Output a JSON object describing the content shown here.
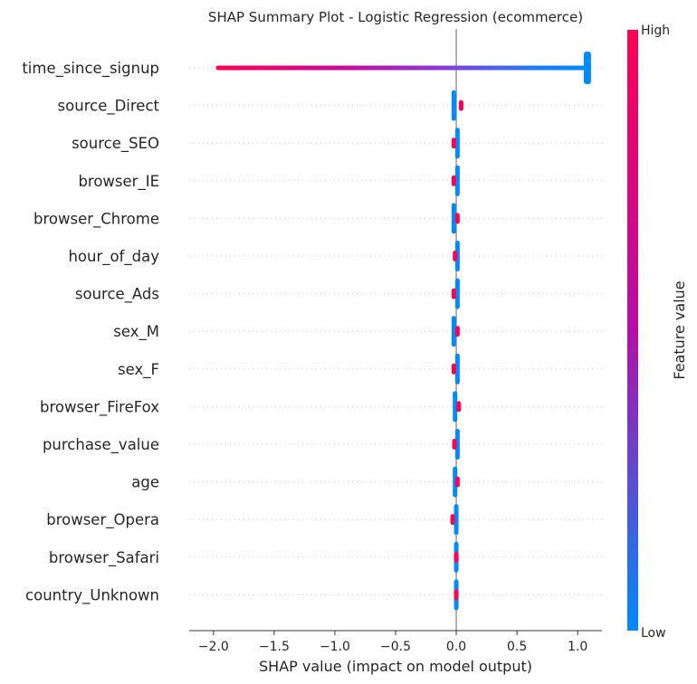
{
  "chart_data": {
    "type": "scatter",
    "title": "SHAP Summary Plot - Logistic Regression (ecommerce)",
    "xlabel": "SHAP value (impact on model output)",
    "xlim": [
      -2.2,
      1.2
    ],
    "xticks": [
      "−2.0",
      "−1.5",
      "−1.0",
      "−0.5",
      "0.0",
      "0.5",
      "1.0"
    ],
    "xtick_values": [
      -2.0,
      -1.5,
      -1.0,
      -0.5,
      0.0,
      0.5,
      1.0
    ],
    "grid": false,
    "colorbar": {
      "label": "Feature value",
      "high": "High",
      "low": "Low"
    },
    "colors": {
      "low": "#008bfb",
      "mid": "#b40fa8",
      "high": "#ff0052",
      "zero_line": "#999999",
      "guide": "#cccccc"
    },
    "features": [
      {
        "name": "time_since_signup",
        "low_shap": [
          0.55,
          1.08
        ],
        "high_shap": [
          -1.98,
          0.0
        ]
      },
      {
        "name": "source_Direct",
        "low_shap": [
          -0.03,
          -0.01
        ],
        "high_shap": [
          0.03,
          0.05
        ]
      },
      {
        "name": "source_SEO",
        "low_shap": [
          0.0,
          0.02
        ],
        "high_shap": [
          -0.03,
          -0.01
        ]
      },
      {
        "name": "browser_IE",
        "low_shap": [
          0.0,
          0.02
        ],
        "high_shap": [
          -0.03,
          -0.01
        ]
      },
      {
        "name": "browser_Chrome",
        "low_shap": [
          -0.03,
          -0.01
        ],
        "high_shap": [
          0.0,
          0.02
        ]
      },
      {
        "name": "hour_of_day",
        "low_shap": [
          0.0,
          0.02
        ],
        "high_shap": [
          -0.02,
          0.0
        ]
      },
      {
        "name": "source_Ads",
        "low_shap": [
          0.0,
          0.02
        ],
        "high_shap": [
          -0.03,
          -0.01
        ]
      },
      {
        "name": "sex_M",
        "low_shap": [
          -0.03,
          -0.01
        ],
        "high_shap": [
          0.0,
          0.02
        ]
      },
      {
        "name": "sex_F",
        "low_shap": [
          0.0,
          0.02
        ],
        "high_shap": [
          -0.03,
          -0.01
        ]
      },
      {
        "name": "browser_FireFox",
        "low_shap": [
          -0.02,
          0.0
        ],
        "high_shap": [
          0.01,
          0.03
        ]
      },
      {
        "name": "purchase_value",
        "low_shap": [
          0.0,
          0.02
        ],
        "high_shap": [
          -0.03,
          0.0
        ]
      },
      {
        "name": "age",
        "low_shap": [
          -0.02,
          0.0
        ],
        "high_shap": [
          0.0,
          0.02
        ]
      },
      {
        "name": "browser_Opera",
        "low_shap": [
          -0.01,
          0.01
        ],
        "high_shap": [
          -0.04,
          -0.02
        ]
      },
      {
        "name": "browser_Safari",
        "low_shap": [
          -0.01,
          0.01
        ],
        "high_shap": [
          -0.01,
          0.01
        ]
      },
      {
        "name": "country_Unknown",
        "low_shap": [
          -0.01,
          0.01
        ],
        "high_shap": [
          -0.01,
          0.01
        ]
      }
    ]
  }
}
